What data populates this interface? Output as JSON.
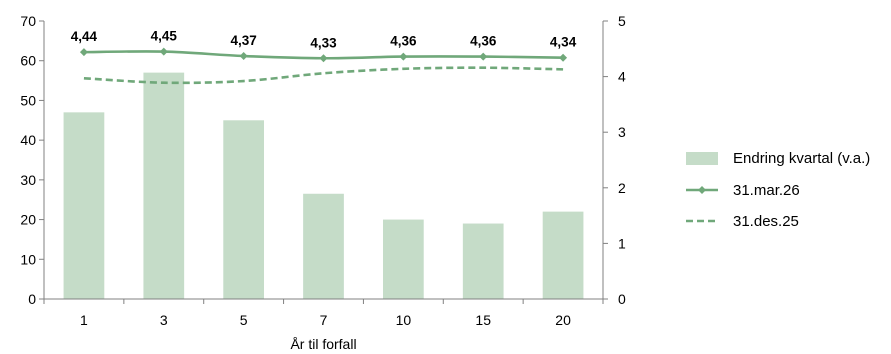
{
  "chart_data": {
    "type": "bar+line",
    "title": "",
    "xlabel": "År til forfall",
    "ylabel_left": "",
    "ylabel_right": "",
    "categories": [
      "1",
      "3",
      "5",
      "7",
      "10",
      "15",
      "20"
    ],
    "ylim_left": [
      0,
      70
    ],
    "yticks_left": [
      "0",
      "10",
      "20",
      "30",
      "40",
      "50",
      "60",
      "70"
    ],
    "ylim_right": [
      0,
      5
    ],
    "yticks_right": [
      "0",
      "1",
      "2",
      "3",
      "4",
      "5"
    ],
    "grid": false,
    "legend_position": "right",
    "series": [
      {
        "name": "Endring kvartal (v.a.)",
        "kind": "bar",
        "axis": "left",
        "color": "#c5dcc8",
        "values": [
          47,
          57,
          45,
          26.5,
          20,
          19,
          22
        ]
      },
      {
        "name": "31.mar.26",
        "kind": "line",
        "axis": "right",
        "style": "solid-diamond",
        "color": "#70a87a",
        "values": [
          4.44,
          4.45,
          4.37,
          4.33,
          4.36,
          4.36,
          4.34
        ],
        "labels": [
          "4,44",
          "4,45",
          "4,37",
          "4,33",
          "4,36",
          "4,36",
          "4,34"
        ]
      },
      {
        "name": "31.des.25",
        "kind": "line",
        "axis": "right",
        "style": "dashed",
        "color": "#70a87a",
        "values": [
          3.97,
          3.89,
          3.92,
          4.06,
          4.14,
          4.16,
          4.13
        ]
      }
    ]
  }
}
